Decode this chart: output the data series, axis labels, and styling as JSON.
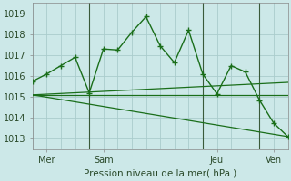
{
  "background_color": "#cce8e8",
  "grid_color": "#aacccc",
  "line_color": "#1a6e1a",
  "sep_color": "#3a5a3a",
  "title": "Pression niveau de la mer( hPa )",
  "ylim": [
    1012.5,
    1019.5
  ],
  "yticks": [
    1013,
    1014,
    1015,
    1016,
    1017,
    1018,
    1019
  ],
  "xlim": [
    0,
    108
  ],
  "xtick_positions": [
    6,
    30,
    78,
    102
  ],
  "xtick_labels": [
    "Mer",
    "Sam",
    "Jeu",
    "Ven"
  ],
  "day_lines": [
    24,
    72,
    96
  ],
  "series": [
    {
      "x": [
        0,
        6,
        12,
        18,
        24,
        30,
        36,
        42,
        48,
        54,
        60,
        66,
        72,
        78,
        84,
        90,
        96,
        102,
        108
      ],
      "y": [
        1015.75,
        1016.1,
        1016.5,
        1016.9,
        1015.2,
        1017.3,
        1017.25,
        1018.1,
        1018.85,
        1017.45,
        1016.65,
        1018.2,
        1016.1,
        1015.15,
        1016.5,
        1016.2,
        1014.85,
        1013.75,
        1013.1
      ],
      "has_marker": true
    },
    {
      "x": [
        0,
        108
      ],
      "y": [
        1015.1,
        1015.1
      ],
      "has_marker": false
    },
    {
      "x": [
        0,
        108
      ],
      "y": [
        1015.1,
        1015.7
      ],
      "has_marker": false
    },
    {
      "x": [
        0,
        108
      ],
      "y": [
        1015.1,
        1013.1
      ],
      "has_marker": false
    }
  ]
}
